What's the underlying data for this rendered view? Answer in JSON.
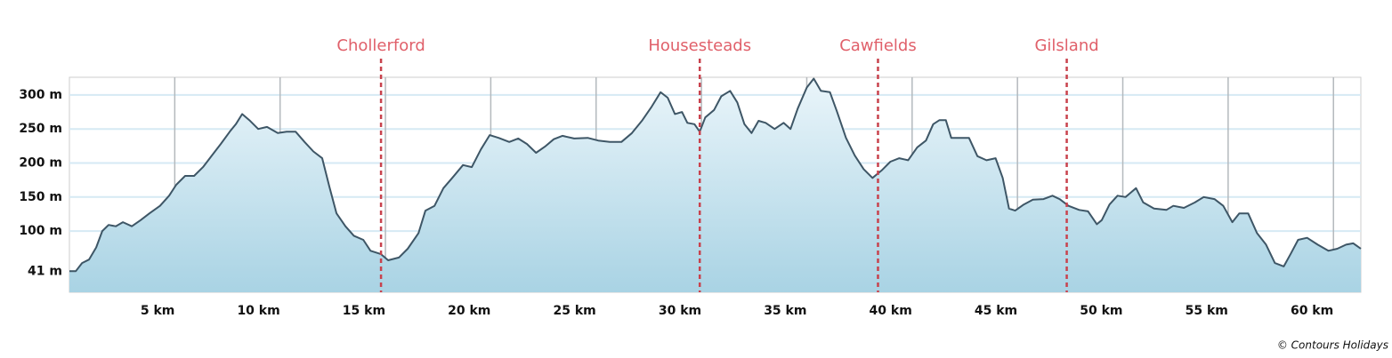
{
  "chart_data": {
    "type": "area",
    "x": [
      0,
      0.3,
      0.6,
      0.93,
      1.27,
      1.56,
      1.86,
      2.2,
      2.54,
      2.96,
      3.38,
      3.8,
      4.3,
      4.73,
      5.07,
      5.49,
      5.92,
      6.34,
      6.76,
      7.18,
      7.61,
      7.9,
      8.2,
      8.54,
      8.96,
      9.38,
      9.89,
      10.31,
      10.74,
      11.16,
      11.58,
      12.0,
      12.34,
      12.68,
      13.1,
      13.5,
      13.95,
      14.29,
      14.79,
      15.13,
      15.64,
      16.06,
      16.57,
      16.9,
      17.33,
      17.75,
      18.17,
      18.68,
      19.1,
      19.53,
      19.95,
      20.37,
      20.88,
      21.3,
      21.72,
      22.15,
      22.57,
      22.99,
      23.4,
      23.96,
      24.6,
      25.1,
      25.65,
      26.2,
      26.7,
      27.2,
      27.64,
      28.06,
      28.4,
      28.74,
      29.08,
      29.33,
      29.67,
      29.92,
      30.18,
      30.6,
      30.94,
      31.36,
      31.7,
      32.04,
      32.38,
      32.71,
      33.05,
      33.47,
      33.9,
      34.23,
      34.57,
      35.0,
      35.33,
      35.67,
      36.1,
      36.43,
      36.86,
      37.28,
      37.7,
      38.12,
      38.55,
      38.97,
      39.39,
      39.81,
      40.24,
      40.66,
      41.0,
      41.3,
      41.6,
      41.86,
      42.28,
      42.7,
      43.1,
      43.53,
      43.96,
      44.3,
      44.6,
      44.89,
      45.3,
      45.73,
      46.24,
      46.66,
      47.0,
      47.42,
      47.93,
      48.35,
      48.77,
      49.0,
      49.37,
      49.75,
      50.13,
      50.63,
      50.97,
      51.48,
      52.07,
      52.4,
      52.9,
      53.42,
      53.84,
      54.35,
      54.77,
      55.2,
      55.53,
      55.95,
      56.37,
      56.8,
      57.22,
      57.64,
      57.98,
      58.32,
      58.75,
      59.25,
      59.76,
      60.18,
      60.6,
      60.94,
      61.3
    ],
    "values": [
      41,
      41,
      53,
      58,
      76,
      100,
      109,
      107,
      113,
      107,
      116,
      126,
      137,
      152,
      168,
      181,
      181,
      194,
      211,
      228,
      246,
      257,
      272,
      263,
      250,
      253,
      244,
      246,
      246,
      231,
      217,
      207,
      165,
      126,
      107,
      93,
      87,
      71,
      66,
      57,
      61,
      74,
      97,
      130,
      137,
      163,
      178,
      197,
      194,
      220,
      241,
      237,
      231,
      236,
      228,
      215,
      224,
      235,
      240,
      236,
      237,
      233,
      231,
      231,
      244,
      263,
      283,
      304,
      296,
      272,
      275,
      259,
      257,
      246,
      267,
      278,
      298,
      306,
      289,
      257,
      244,
      262,
      259,
      250,
      259,
      250,
      280,
      311,
      324,
      306,
      304,
      276,
      237,
      211,
      191,
      178,
      189,
      202,
      207,
      204,
      223,
      233,
      257,
      263,
      263,
      237,
      237,
      237,
      210,
      204,
      207,
      178,
      133,
      130,
      139,
      146,
      147,
      152,
      147,
      137,
      131,
      129,
      110,
      116,
      139,
      152,
      150,
      163,
      142,
      133,
      131,
      137,
      134,
      142,
      150,
      147,
      137,
      113,
      126,
      126,
      97,
      80,
      53,
      48,
      67,
      87,
      90,
      80,
      71,
      74,
      80,
      82,
      74
    ],
    "xlim": [
      0,
      61.3
    ],
    "ylim": [
      10,
      326
    ],
    "xticks": [
      {
        "value": 5,
        "label": "5 km"
      },
      {
        "value": 10,
        "label": "10 km"
      },
      {
        "value": 15,
        "label": "15 km"
      },
      {
        "value": 20,
        "label": "20 km"
      },
      {
        "value": 25,
        "label": "25 km"
      },
      {
        "value": 30,
        "label": "30 km"
      },
      {
        "value": 35,
        "label": "35 km"
      },
      {
        "value": 40,
        "label": "40 km"
      },
      {
        "value": 45,
        "label": "45 km"
      },
      {
        "value": 50,
        "label": "50 km"
      },
      {
        "value": 55,
        "label": "55 km"
      },
      {
        "value": 60,
        "label": "60 km"
      }
    ],
    "yticks": [
      {
        "value": 41,
        "label": "41 m"
      },
      {
        "value": 100,
        "label": "100 m"
      },
      {
        "value": 150,
        "label": "150 m"
      },
      {
        "value": 200,
        "label": "200 m"
      },
      {
        "value": 250,
        "label": "250 m"
      },
      {
        "value": 300,
        "label": "300 m"
      }
    ],
    "color": "#3e5666",
    "grid": true,
    "annotations": [
      {
        "label": "Chollerford",
        "x": 14.79
      },
      {
        "label": "Housesteads",
        "x": 29.92
      },
      {
        "label": "Cawfields",
        "x": 38.38
      },
      {
        "label": "Gilsland",
        "x": 47.34
      }
    ],
    "credit": "© Contours Holidays"
  }
}
